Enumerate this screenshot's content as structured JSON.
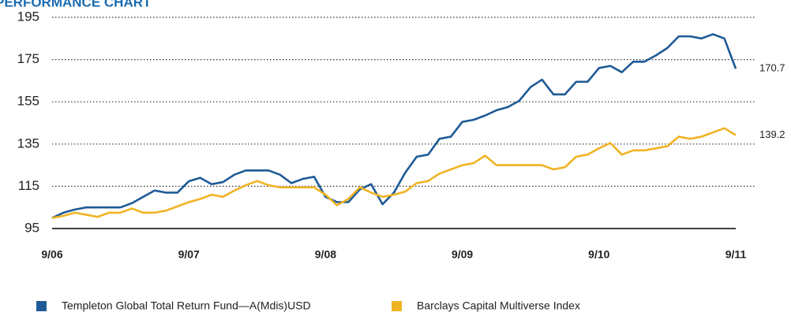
{
  "chart_data": {
    "type": "line",
    "title": "PERFORMANCE CHART",
    "categories": [
      "9/06",
      null,
      null,
      null,
      null,
      null,
      null,
      null,
      null,
      null,
      null,
      null,
      "9/07",
      null,
      null,
      null,
      null,
      null,
      null,
      null,
      null,
      null,
      null,
      null,
      "9/08",
      null,
      null,
      null,
      null,
      null,
      null,
      null,
      null,
      null,
      null,
      null,
      "9/09",
      null,
      null,
      null,
      null,
      null,
      null,
      null,
      null,
      null,
      null,
      null,
      "9/10",
      null,
      null,
      null,
      null,
      null,
      null,
      null,
      null,
      null,
      null,
      null,
      "9/11"
    ],
    "series": [
      {
        "name": "Templeton Global Total Return Fund—A(Mdis)USD",
        "color": "#1f5a96",
        "values": [
          100,
          102.5,
          104,
          105,
          105,
          105,
          105,
          107,
          110,
          113,
          112,
          112,
          117.4,
          119,
          116,
          117,
          120.5,
          122.5,
          122.5,
          122.5,
          120.5,
          116.5,
          118.5,
          119.5,
          110,
          107.5,
          107.5,
          113.5,
          116,
          106.5,
          112,
          121.5,
          129,
          130,
          137.5,
          138.5,
          145.5,
          146.5,
          148.5,
          151,
          152.5,
          155.5,
          162,
          165.5,
          158.5,
          158.5,
          164.5,
          164.5,
          171,
          172,
          169,
          174,
          174,
          177,
          180.5,
          186,
          186,
          185,
          187,
          185,
          170.7
        ]
      },
      {
        "name": "Barclays Capital Multiverse Index",
        "color": "#f0b323",
        "values": [
          100,
          101,
          102.5,
          101.5,
          100.5,
          102.5,
          102.5,
          104.5,
          102.5,
          102.5,
          103.5,
          105.5,
          107.5,
          109,
          111,
          110,
          113,
          115.5,
          117.5,
          115.5,
          114.5,
          114.5,
          114.5,
          114.5,
          111,
          106,
          109,
          114.5,
          112,
          110,
          111,
          112.5,
          116.5,
          117.5,
          121,
          123,
          125,
          126,
          129.5,
          125,
          125,
          125,
          125,
          125,
          123,
          124,
          129,
          130,
          133,
          135.5,
          130,
          132,
          132,
          133,
          134,
          138.5,
          137.5,
          138.5,
          140.5,
          142.5,
          139.2
        ]
      }
    ],
    "ylim": [
      95,
      195
    ],
    "yticks": [
      95,
      115,
      135,
      155,
      175,
      195
    ],
    "grid": true
  }
}
